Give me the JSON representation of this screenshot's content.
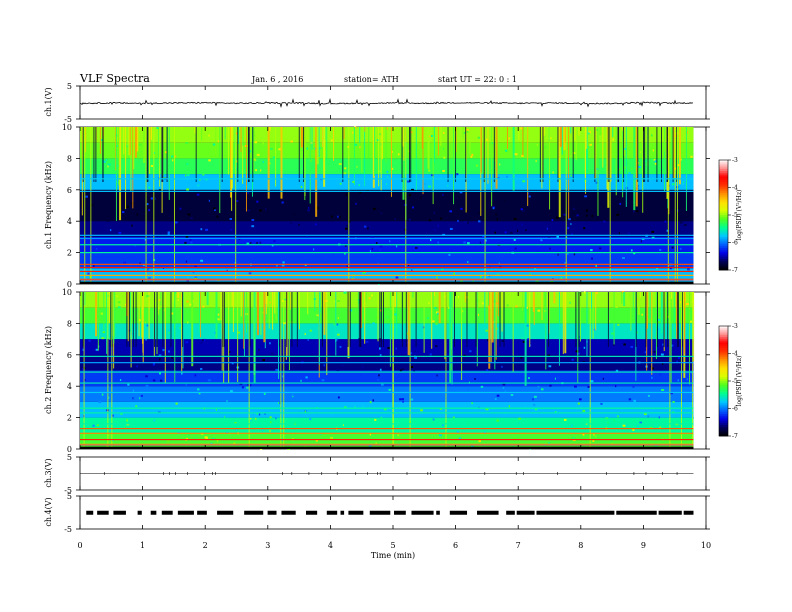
{
  "header": {
    "title": "VLF Spectra",
    "date": "Jan. 6 , 2016",
    "station": "station= ATH",
    "start": "start  UT =   22: 0  : 1"
  },
  "colorbar": {
    "label": "log(PSD) (V²/Hz)",
    "ticks": [
      -3,
      -4,
      -5,
      -6,
      -7
    ],
    "range": [
      -7,
      -3
    ],
    "colors": [
      "#000000",
      "#00005a",
      "#0000e6",
      "#0060ff",
      "#00c8ff",
      "#00ff90",
      "#50ff20",
      "#d8ff00",
      "#ffe000",
      "#ff9000",
      "#ff3000",
      "#ff0000",
      "#ff9090",
      "#ffffff"
    ]
  },
  "chart_data": [
    {
      "type": "line",
      "panel": "ch1-waveform",
      "ylabel": "ch.1(V)",
      "ylim": [
        -5,
        5
      ],
      "yticks": [
        "5",
        "-5"
      ],
      "xlim": [
        0,
        10
      ],
      "series": [
        {
          "x": [
            0,
            0.5,
            1,
            1.5,
            2,
            2.5,
            3,
            3.5,
            4,
            4.5,
            5,
            5.5,
            6,
            6.5,
            7,
            7.5,
            8,
            8.5,
            9,
            9.5,
            9.8
          ],
          "values": [
            -0.3,
            -0.2,
            -0.3,
            -0.2,
            -0.1,
            -0.3,
            -0.2,
            -0.2,
            -0.4,
            -0.3,
            -0.2,
            -0.3,
            -0.1,
            -0.2,
            -0.3,
            -0.2,
            -0.3,
            -0.4,
            0.0,
            -0.3,
            -0.1
          ]
        }
      ]
    },
    {
      "type": "heatmap",
      "panel": "ch1-spectrogram",
      "ylabel": "ch.1 Frequency (kHz)",
      "ylim": [
        0,
        10
      ],
      "yticks": [
        0,
        2,
        4,
        6,
        8,
        10
      ],
      "xlim": [
        0,
        10
      ],
      "freq_bands_khz": [
        0,
        1,
        2,
        3,
        4,
        5,
        6,
        7,
        8,
        9,
        10
      ],
      "typical_log_psd": [
        -5.8,
        -6.2,
        -6.3,
        -6.6,
        -6.8,
        -6.8,
        -5.8,
        -5.3,
        -5.1,
        -5.0
      ],
      "carrier_lines_khz": [
        0.3,
        0.55,
        0.8,
        1.05,
        1.25,
        2.0,
        2.5,
        2.9,
        3.1,
        5.9,
        6.7
      ]
    },
    {
      "type": "heatmap",
      "panel": "ch2-spectrogram",
      "ylabel": "ch.2 Frequency (kHz)",
      "ylim": [
        0,
        10
      ],
      "yticks": [
        0,
        2,
        4,
        6,
        8,
        10
      ],
      "xlim": [
        0,
        10
      ],
      "freq_bands_khz": [
        0,
        1,
        2,
        3,
        4,
        5,
        6,
        7,
        8,
        9,
        10
      ],
      "typical_log_psd": [
        -5.2,
        -5.5,
        -5.8,
        -6.0,
        -6.2,
        -6.6,
        -6.5,
        -5.6,
        -5.2,
        -5.0
      ],
      "carrier_lines_khz": [
        0.3,
        0.6,
        1.0,
        1.3,
        1.6,
        2.3,
        2.6,
        3.6,
        4.2,
        4.9,
        5.5,
        5.9
      ]
    },
    {
      "type": "line",
      "panel": "ch3-waveform",
      "ylabel": "ch.3(V)",
      "ylim": [
        -5,
        5
      ],
      "yticks": [
        "5",
        "-5"
      ],
      "xlim": [
        0,
        10
      ],
      "series": [
        {
          "x": [
            0,
            9.8
          ],
          "values": [
            0,
            0
          ]
        }
      ]
    },
    {
      "type": "line",
      "panel": "ch4-waveform",
      "ylabel": "ch.4(V)",
      "ylim": [
        -5,
        5
      ],
      "yticks": [
        "5",
        "-5"
      ],
      "xlim": [
        0,
        10
      ],
      "xlabel": "Time  (min)",
      "xticks": [
        0,
        1,
        2,
        3,
        4,
        5,
        6,
        7,
        8,
        9,
        10
      ],
      "series": [
        {
          "x": [
            0,
            9.8
          ],
          "values": [
            -0.1,
            -0.1
          ]
        }
      ]
    }
  ]
}
